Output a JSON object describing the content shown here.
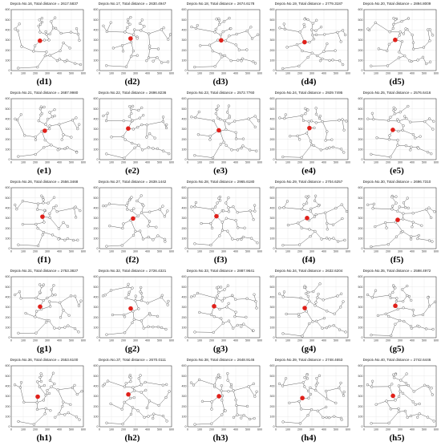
{
  "figure": {
    "x_ticks": [
      "0",
      "100",
      "200",
      "300",
      "400",
      "500",
      "600"
    ],
    "y_ticks": [
      "0",
      "100",
      "200",
      "300",
      "400",
      "500",
      "600"
    ],
    "colors": {
      "edge": "#555555",
      "node_fill": "#ffffff",
      "node_stroke": "#444444",
      "depot": "#e0201a",
      "axis": "#222222",
      "grid": "#dddddd"
    }
  },
  "chart_data": [
    {
      "panel_label": "(d1)",
      "title": "Depot=No.16, Total distance = 2617.5837",
      "depot_no": 16,
      "total_distance": 2617.5837,
      "type": "scatter",
      "xlim": [
        0,
        600
      ],
      "ylim": [
        0,
        600
      ]
    },
    {
      "panel_label": "(d2)",
      "title": "Depot=No.17, Total distance = 2630.4947",
      "depot_no": 17,
      "total_distance": 2630.4947,
      "type": "scatter",
      "xlim": [
        0,
        600
      ],
      "ylim": [
        0,
        600
      ]
    },
    {
      "panel_label": "(d3)",
      "title": "Depot=No.18, Total distance = 2674.6178",
      "depot_no": 18,
      "total_distance": 2674.6178,
      "type": "scatter",
      "xlim": [
        0,
        600
      ],
      "ylim": [
        0,
        600
      ]
    },
    {
      "panel_label": "(d4)",
      "title": "Depot=No.19, Total distance = 2779.3187",
      "depot_no": 19,
      "total_distance": 2779.3187,
      "type": "scatter",
      "xlim": [
        0,
        600
      ],
      "ylim": [
        0,
        600
      ]
    },
    {
      "panel_label": "(d5)",
      "title": "Depot=No.20, Total distance = 2894.8009",
      "depot_no": 20,
      "total_distance": 2894.8009,
      "type": "scatter",
      "xlim": [
        0,
        600
      ],
      "ylim": [
        0,
        600
      ]
    },
    {
      "panel_label": "(e1)",
      "title": "Depot=No.21, Total distance = 2687.9980",
      "depot_no": 21,
      "total_distance": 2687.998,
      "type": "scatter",
      "xlim": [
        0,
        600
      ],
      "ylim": [
        0,
        600
      ]
    },
    {
      "panel_label": "(e2)",
      "title": "Depot=No.22, Total distance = 2696.8236",
      "depot_no": 22,
      "total_distance": 2696.8236,
      "type": "scatter",
      "xlim": [
        0,
        600
      ],
      "ylim": [
        0,
        600
      ]
    },
    {
      "panel_label": "(e3)",
      "title": "Depot=No.23, Total distance = 2572.7760",
      "depot_no": 23,
      "total_distance": 2572.776,
      "type": "scatter",
      "xlim": [
        0,
        600
      ],
      "ylim": [
        0,
        600
      ]
    },
    {
      "panel_label": "(e4)",
      "title": "Depot=No.24, Total distance = 2929.7495",
      "depot_no": 24,
      "total_distance": 2929.7495,
      "type": "scatter",
      "xlim": [
        0,
        600
      ],
      "ylim": [
        0,
        600
      ]
    },
    {
      "panel_label": "(e5)",
      "title": "Depot=No.25, Total distance = 2576.6416",
      "depot_no": 25,
      "total_distance": 2576.6416,
      "type": "scatter",
      "xlim": [
        0,
        600
      ],
      "ylim": [
        0,
        600
      ]
    },
    {
      "panel_label": "(f1)",
      "title": "Depot=No.26, Total distance = 2556.3468",
      "depot_no": 26,
      "total_distance": 2556.3468,
      "type": "scatter",
      "xlim": [
        0,
        600
      ],
      "ylim": [
        0,
        600
      ]
    },
    {
      "panel_label": "(f2)",
      "title": "Depot=No.27, Total distance = 2639.1442",
      "depot_no": 27,
      "total_distance": 2639.1442,
      "type": "scatter",
      "xlim": [
        0,
        600
      ],
      "ylim": [
        0,
        600
      ]
    },
    {
      "panel_label": "(f3)",
      "title": "Depot=No.28, Total distance = 2965.6180",
      "depot_no": 28,
      "total_distance": 2965.618,
      "type": "scatter",
      "xlim": [
        0,
        600
      ],
      "ylim": [
        0,
        600
      ]
    },
    {
      "panel_label": "(f4)",
      "title": "Depot=No.29, Total distance = 2704.6257",
      "depot_no": 29,
      "total_distance": 2704.6257,
      "type": "scatter",
      "xlim": [
        0,
        600
      ],
      "ylim": [
        0,
        600
      ]
    },
    {
      "panel_label": "(f5)",
      "title": "Depot=No.30, Total distance = 2696.7310",
      "depot_no": 30,
      "total_distance": 2696.731,
      "type": "scatter",
      "xlim": [
        0,
        600
      ],
      "ylim": [
        0,
        600
      ]
    },
    {
      "panel_label": "(g1)",
      "title": "Depot=No.31, Total distance = 2753.3827",
      "depot_no": 31,
      "total_distance": 2753.3827,
      "type": "scatter",
      "xlim": [
        0,
        600
      ],
      "ylim": [
        0,
        600
      ]
    },
    {
      "panel_label": "(g2)",
      "title": "Depot=No.32, Total distance = 2726.4321",
      "depot_no": 32,
      "total_distance": 2726.4321,
      "type": "scatter",
      "xlim": [
        0,
        600
      ],
      "ylim": [
        0,
        600
      ]
    },
    {
      "panel_label": "(g3)",
      "title": "Depot=No.33, Total distance = 2887.9641",
      "depot_no": 33,
      "total_distance": 2887.9641,
      "type": "scatter",
      "xlim": [
        0,
        600
      ],
      "ylim": [
        0,
        600
      ]
    },
    {
      "panel_label": "(g4)",
      "title": "Depot=No.34, Total distance = 2632.6204",
      "depot_no": 34,
      "total_distance": 2632.6204,
      "type": "scatter",
      "xlim": [
        0,
        600
      ],
      "ylim": [
        0,
        600
      ]
    },
    {
      "panel_label": "(g5)",
      "title": "Depot=No.35, Total distance = 2598.4972",
      "depot_no": 35,
      "total_distance": 2598.4972,
      "type": "scatter",
      "xlim": [
        0,
        600
      ],
      "ylim": [
        0,
        600
      ]
    },
    {
      "panel_label": "(h1)",
      "title": "Depot=No.36, Total distance = 2553.6100",
      "depot_no": 36,
      "total_distance": 2553.61,
      "type": "scatter",
      "xlim": [
        0,
        600
      ],
      "ylim": [
        0,
        600
      ]
    },
    {
      "panel_label": "(h2)",
      "title": "Depot=No.37, Total distance = 2670.0111",
      "depot_no": 37,
      "total_distance": 2670.0111,
      "type": "scatter",
      "xlim": [
        0,
        600
      ],
      "ylim": [
        0,
        600
      ]
    },
    {
      "panel_label": "(h3)",
      "title": "Depot=No.38, Total distance = 2648.9146",
      "depot_no": 38,
      "total_distance": 2648.9146,
      "type": "scatter",
      "xlim": [
        0,
        600
      ],
      "ylim": [
        0,
        600
      ]
    },
    {
      "panel_label": "(h4)",
      "title": "Depot=No.39, Total distance = 2748.4653",
      "depot_no": 39,
      "total_distance": 2748.4653,
      "type": "scatter",
      "xlim": [
        0,
        600
      ],
      "ylim": [
        0,
        600
      ]
    },
    {
      "panel_label": "(h5)",
      "title": "Depot=No.40, Total distance = 2742.6446",
      "depot_no": 40,
      "total_distance": 2742.6446,
      "type": "scatter",
      "xlim": [
        0,
        600
      ],
      "ylim": [
        0,
        600
      ]
    }
  ]
}
